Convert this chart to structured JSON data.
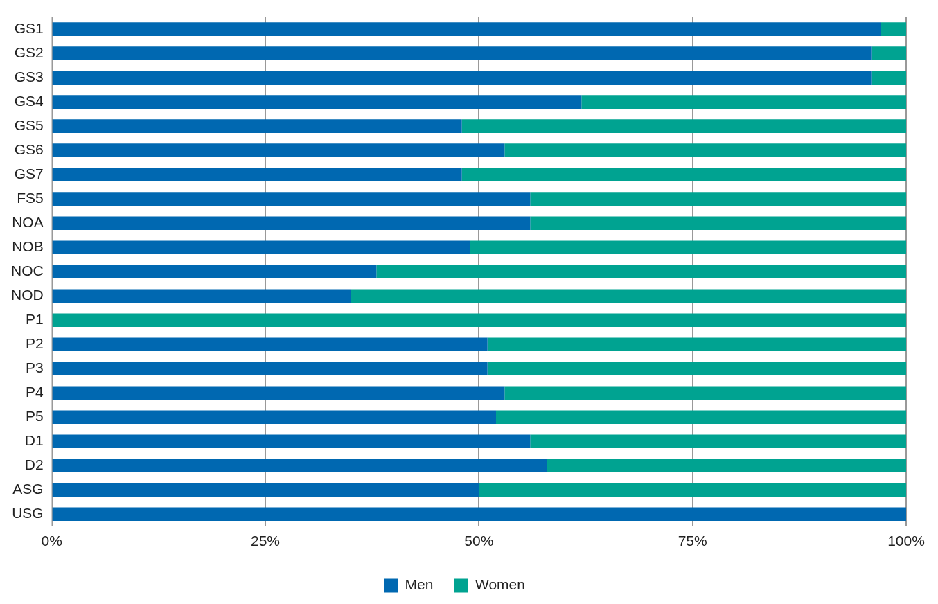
{
  "chart_data": {
    "type": "bar",
    "orientation": "horizontal",
    "stacked": true,
    "categories": [
      "GS1",
      "GS2",
      "GS3",
      "GS4",
      "GS5",
      "GS6",
      "GS7",
      "FS5",
      "NOA",
      "NOB",
      "NOC",
      "NOD",
      "P1",
      "P2",
      "P3",
      "P4",
      "P5",
      "D1",
      "D2",
      "ASG",
      "USG"
    ],
    "series": [
      {
        "name": "Men",
        "color": "#0068b1",
        "values": [
          97,
          96,
          96,
          62,
          48,
          53,
          48,
          56,
          56,
          49,
          38,
          35,
          0,
          51,
          51,
          53,
          52,
          56,
          58,
          50,
          100
        ]
      },
      {
        "name": "Women",
        "color": "#00a391",
        "values": [
          3,
          4,
          4,
          38,
          52,
          47,
          52,
          44,
          44,
          51,
          62,
          65,
          100,
          49,
          49,
          47,
          48,
          44,
          42,
          50,
          0
        ]
      }
    ],
    "xlim": [
      0,
      100
    ],
    "xticks": [
      {
        "value": 0,
        "label": "0%"
      },
      {
        "value": 25,
        "label": "25%"
      },
      {
        "value": 50,
        "label": "50%"
      },
      {
        "value": 75,
        "label": "75%"
      },
      {
        "value": 100,
        "label": "100%"
      }
    ],
    "grid": "x",
    "legend": "bottom"
  }
}
